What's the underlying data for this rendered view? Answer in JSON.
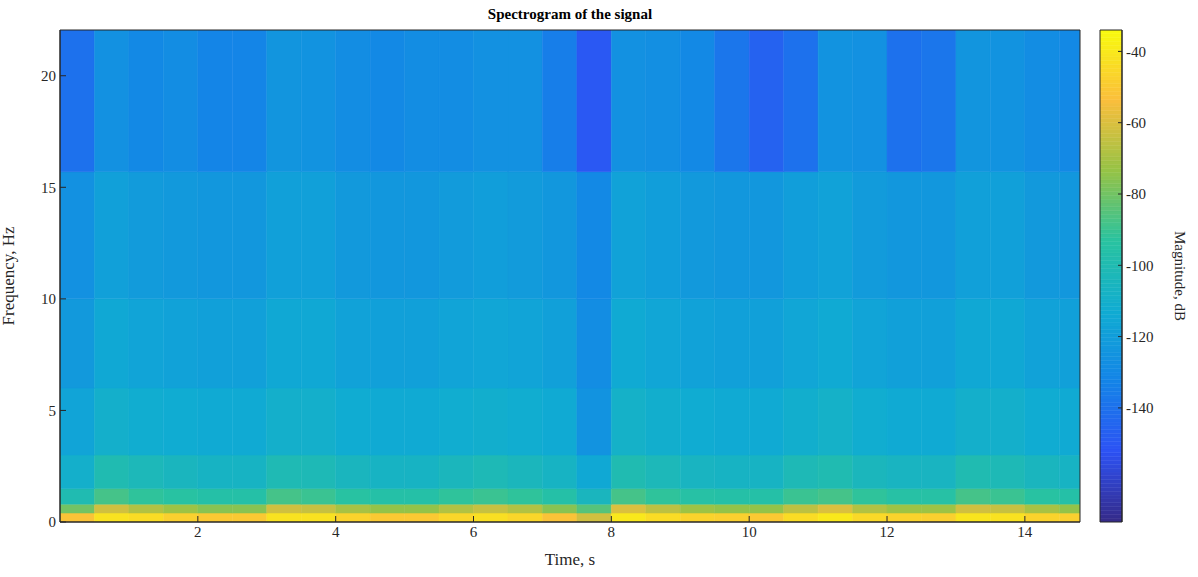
{
  "chart_data": {
    "type": "heatmap",
    "title": "Spectrogram of the signal",
    "x_label": "Time, s",
    "y_label": "Frequency, Hz",
    "xlim": [
      0,
      14.8
    ],
    "xticks": [
      2,
      4,
      6,
      8,
      10,
      12,
      14
    ],
    "ylim": [
      0,
      22.05
    ],
    "yticks": [
      0,
      5,
      10,
      15,
      20
    ],
    "x_edges": [
      0,
      0.5,
      1,
      1.5,
      2,
      2.5,
      3,
      3.5,
      4,
      4.5,
      5,
      5.5,
      6,
      6.5,
      7,
      7.5,
      8,
      8.5,
      9,
      9.5,
      10,
      10.5,
      11,
      11.5,
      12,
      12.5,
      13,
      13.5,
      14,
      14.5,
      14.8
    ],
    "y_edges": [
      0,
      0.4,
      0.8,
      1.5,
      3,
      6,
      10,
      15.7,
      22.05
    ],
    "cells": [
      [
        -52,
        -42,
        -44,
        -48,
        -50,
        -50,
        -42,
        -42,
        -47,
        -50,
        -50,
        -46,
        -43,
        -46,
        -52,
        -62,
        -40,
        -44,
        -47,
        -48,
        -50,
        -44,
        -40,
        -45,
        -47,
        -48,
        -41,
        -42,
        -47,
        -48
      ],
      [
        -80,
        -62,
        -68,
        -72,
        -76,
        -76,
        -62,
        -64,
        -70,
        -74,
        -74,
        -68,
        -64,
        -68,
        -76,
        -85,
        -60,
        -66,
        -72,
        -74,
        -74,
        -66,
        -60,
        -68,
        -72,
        -72,
        -62,
        -64,
        -70,
        -74
      ],
      [
        -100,
        -88,
        -92,
        -94,
        -96,
        -96,
        -88,
        -90,
        -94,
        -96,
        -96,
        -92,
        -90,
        -92,
        -96,
        -105,
        -88,
        -92,
        -95,
        -96,
        -96,
        -90,
        -88,
        -92,
        -95,
        -95,
        -88,
        -90,
        -94,
        -96
      ],
      [
        -110,
        -100,
        -103,
        -105,
        -107,
        -107,
        -101,
        -102,
        -105,
        -107,
        -107,
        -104,
        -102,
        -104,
        -107,
        -115,
        -100,
        -103,
        -106,
        -107,
        -107,
        -102,
        -100,
        -104,
        -106,
        -106,
        -100,
        -102,
        -105,
        -107
      ],
      [
        -117,
        -110,
        -112,
        -113,
        -114,
        -114,
        -110,
        -110,
        -113,
        -114,
        -114,
        -112,
        -111,
        -112,
        -114,
        -125,
        -109,
        -111,
        -113,
        -114,
        -114,
        -111,
        -109,
        -112,
        -114,
        -114,
        -110,
        -110,
        -113,
        -114
      ],
      [
        -122,
        -115,
        -117,
        -118,
        -119,
        -119,
        -115,
        -115,
        -118,
        -119,
        -119,
        -117,
        -116,
        -117,
        -119,
        -128,
        -114,
        -116,
        -118,
        -119,
        -119,
        -116,
        -114,
        -117,
        -119,
        -119,
        -115,
        -115,
        -118,
        -119
      ],
      [
        -126,
        -119,
        -121,
        -122,
        -123,
        -123,
        -119,
        -119,
        -122,
        -123,
        -123,
        -121,
        -120,
        -121,
        -123,
        -130,
        -118,
        -120,
        -122,
        -123,
        -123,
        -120,
        -118,
        -121,
        -123,
        -123,
        -119,
        -119,
        -122,
        -123
      ],
      [
        -140,
        -126,
        -130,
        -128,
        -132,
        -132,
        -124,
        -125,
        -128,
        -130,
        -128,
        -128,
        -126,
        -126,
        -135,
        -150,
        -126,
        -127,
        -130,
        -138,
        -146,
        -140,
        -125,
        -126,
        -140,
        -138,
        -124,
        -125,
        -128,
        -130
      ]
    ],
    "colorbar": {
      "label": "Magnitude, dB",
      "range": [
        -172,
        -34
      ],
      "ticks": [
        -140,
        -120,
        -100,
        -80,
        -60,
        -40
      ]
    }
  }
}
